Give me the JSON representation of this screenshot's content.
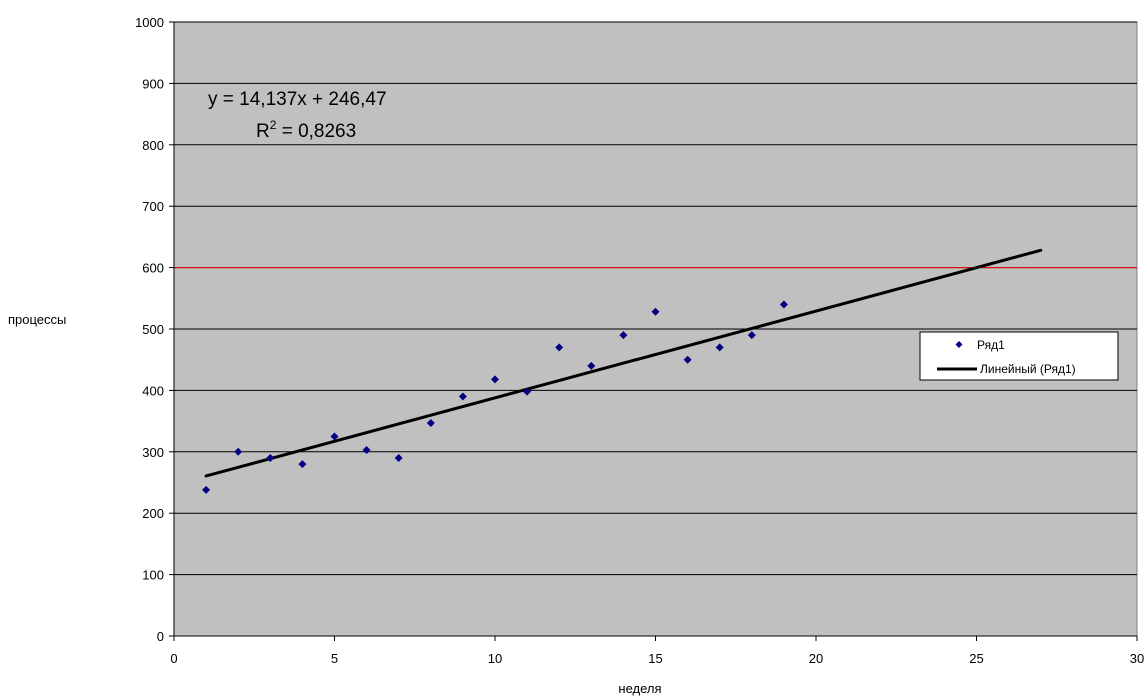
{
  "chart_data": {
    "type": "scatter",
    "xlabel": "неделя",
    "ylabel": "процессы",
    "xlim": [
      0,
      30
    ],
    "ylim": [
      0,
      1000
    ],
    "x_ticks": [
      0,
      5,
      10,
      15,
      20,
      25,
      30
    ],
    "y_ticks": [
      0,
      100,
      200,
      300,
      400,
      500,
      600,
      700,
      800,
      900,
      1000
    ],
    "grid": "horizontal",
    "plot_background": "#c0c0c0",
    "series": [
      {
        "name": "Ряд1",
        "marker": "diamond",
        "color": "#000080",
        "x": [
          1,
          2,
          3,
          4,
          5,
          6,
          7,
          8,
          9,
          10,
          11,
          12,
          13,
          14,
          15,
          16,
          17,
          18,
          19
        ],
        "y": [
          238,
          300,
          290,
          280,
          325,
          303,
          290,
          347,
          390,
          418,
          398,
          470,
          440,
          490,
          528,
          450,
          470,
          490,
          540
        ]
      }
    ],
    "trendline": {
      "name": "Линейный (Ряд1)",
      "type": "linear",
      "slope": 14.137,
      "intercept": 246.47,
      "x_start": 1,
      "x_end": 27,
      "color": "#000000",
      "equation_label": "y = 14,137x + 246,47",
      "r2_prefix": "R",
      "r2_exponent": "2",
      "r2_suffix": " = 0,8263"
    },
    "reference_line": {
      "y": 600,
      "color": "#ff0000"
    },
    "legend": {
      "placement": "right",
      "entries": [
        "Ряд1",
        "Линейный (Ряд1)"
      ]
    }
  }
}
